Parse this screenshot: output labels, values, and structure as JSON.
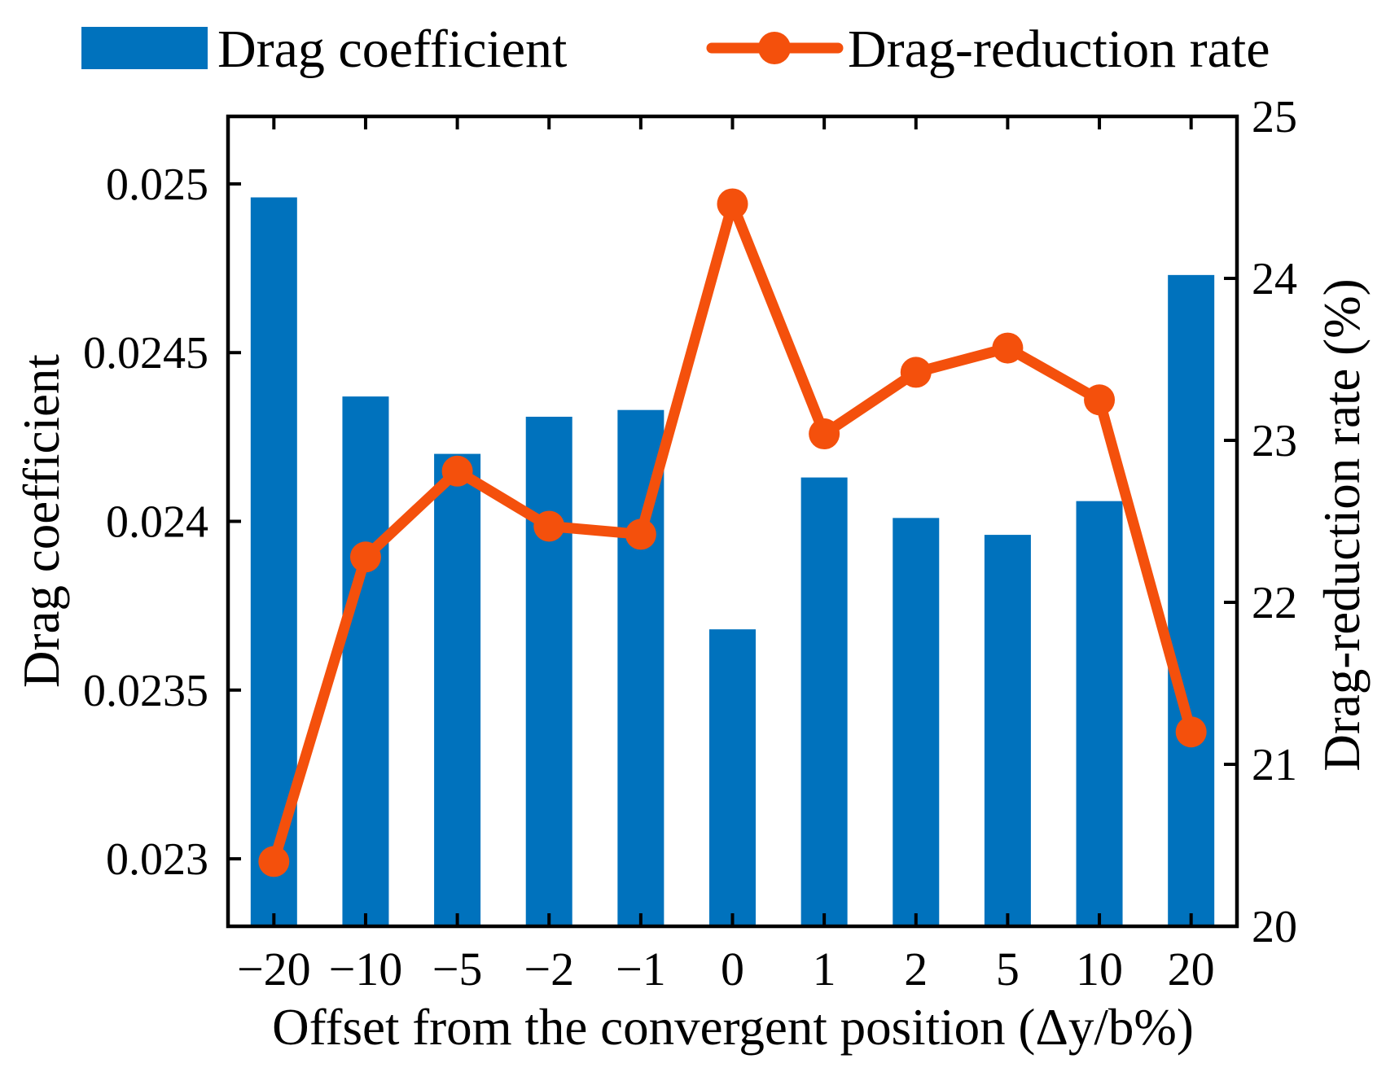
{
  "chart_data": {
    "type": "combo-bar-line",
    "categories": [
      "−20",
      "−10",
      "−5",
      "−2",
      "−1",
      "0",
      "1",
      "2",
      "5",
      "10",
      "20"
    ],
    "series": [
      {
        "name": "Drag coefficient",
        "type": "bar",
        "axis": "left",
        "color": "#0072BD",
        "values": [
          0.02496,
          0.02437,
          0.0242,
          0.02431,
          0.02433,
          0.02368,
          0.02413,
          0.02401,
          0.02396,
          0.02406,
          0.02473
        ]
      },
      {
        "name": "Drag-reduction rate",
        "type": "line",
        "axis": "right",
        "color": "#F4500C",
        "values": [
          20.4,
          22.28,
          22.81,
          22.47,
          22.42,
          24.46,
          23.04,
          23.42,
          23.57,
          23.25,
          21.2
        ]
      }
    ],
    "x_axis": {
      "label": "Offset from the convergent position (Δy/b%)"
    },
    "left_axis": {
      "label": "Drag coefficient",
      "min": 0.0228,
      "max": 0.0252,
      "tick_values": [
        0.023,
        0.0235,
        0.024,
        0.0245,
        0.025
      ],
      "tick_labels": [
        "0.023",
        "0.0235",
        "0.024",
        "0.0245",
        "0.025"
      ]
    },
    "right_axis": {
      "label": "Drag-reduction rate (%)",
      "min": 20,
      "max": 25,
      "tick_values": [
        20,
        21,
        22,
        23,
        24,
        25
      ],
      "tick_labels": [
        "20",
        "21",
        "22",
        "23",
        "24",
        "25"
      ]
    },
    "legend_position": "top",
    "grid": "off",
    "axis_color": "#000000"
  }
}
